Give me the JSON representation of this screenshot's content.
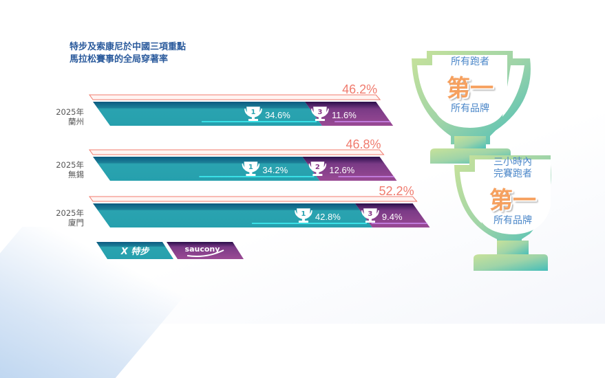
{
  "title_lines": [
    "特步及索康尼於中國三項重點",
    "馬拉松賽事的全局穿著率"
  ],
  "chart_data": {
    "type": "bar",
    "orientation": "horizontal",
    "stacked": true,
    "categories": [
      {
        "year": "2025年",
        "city": "蘭州"
      },
      {
        "year": "2025年",
        "city": "無錫"
      },
      {
        "year": "2025年",
        "city": "廈門"
      }
    ],
    "series": [
      {
        "brand": "xtep",
        "values": [
          34.6,
          34.2,
          42.8
        ],
        "labels": [
          "34.6%",
          "34.2%",
          "42.8%"
        ],
        "ranks": [
          "1",
          "1",
          "1"
        ],
        "color": "#2aa3b0"
      },
      {
        "brand": "saucony",
        "values": [
          11.6,
          12.6,
          9.4
        ],
        "labels": [
          "11.6%",
          "12.6%",
          "9.4%"
        ],
        "ranks": [
          "3",
          "2",
          "3"
        ],
        "color": "#9a4a94"
      }
    ],
    "totals": [
      46.2,
      46.8,
      52.2
    ],
    "total_labels": [
      "46.2%",
      "46.8%",
      "52.2%"
    ],
    "total_color": "#f07b6e",
    "legend": [
      {
        "brand": "xtep",
        "label": "特步",
        "color": "#2aa3b0"
      },
      {
        "brand": "saucony",
        "label": "saucony",
        "color": "#9a4a94"
      }
    ],
    "legend_placement": "bottom-left"
  },
  "trophies": [
    {
      "top": "所有跑者",
      "main": "第一",
      "bottom": "所有品牌"
    },
    {
      "top1": "三小時內",
      "top2": "完賽跑者",
      "main": "第一",
      "bottom": "所有品牌"
    }
  ]
}
